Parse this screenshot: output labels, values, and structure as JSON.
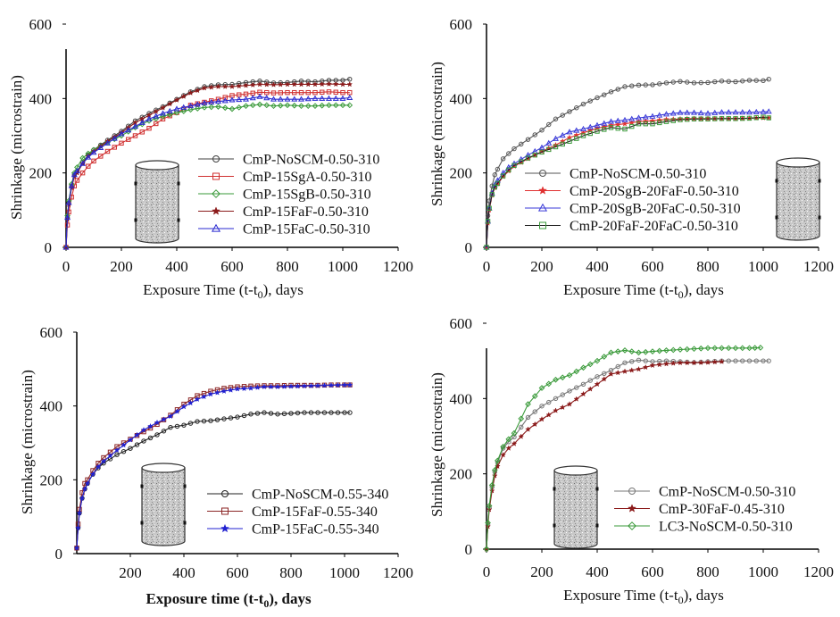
{
  "chart_data": [
    {
      "type": "line",
      "panel": "top-left",
      "title": "",
      "xlabel": "Exposure Time (t-t",
      "xlabel_sub": "0",
      "xlabel_suffix": "), days",
      "ylabel": "Shrinkage (microstrain)",
      "xlim": [
        0,
        1200
      ],
      "ylim": [
        0,
        600
      ],
      "xticks": [
        "0",
        "200",
        "400",
        "600",
        "800",
        "1000",
        "1200"
      ],
      "yticks": [
        "0",
        "200",
        "400",
        "600"
      ],
      "legend_placement": "bottom-right",
      "series": [
        {
          "name": "CmP-NoSCM-0.50-310",
          "color": "#404040",
          "marker": "circle",
          "x": [
            0,
            5,
            10,
            20,
            30,
            40,
            60,
            80,
            100,
            150,
            200,
            250,
            300,
            350,
            400,
            450,
            500,
            550,
            600,
            650,
            700,
            750,
            800,
            850,
            900,
            950,
            1000,
            1025
          ],
          "y": [
            0,
            80,
            120,
            165,
            195,
            205,
            228,
            248,
            262,
            288,
            312,
            340,
            360,
            378,
            398,
            418,
            432,
            437,
            438,
            443,
            447,
            442,
            443,
            447,
            445,
            449,
            449,
            452
          ]
        },
        {
          "name": "CmP-15SgA-0.50-310",
          "color": "#d03030",
          "marker": "square",
          "x": [
            0,
            5,
            10,
            20,
            30,
            40,
            60,
            80,
            100,
            150,
            200,
            250,
            300,
            350,
            400,
            450,
            500,
            550,
            600,
            650,
            700,
            750,
            800,
            850,
            900,
            950,
            1000,
            1025
          ],
          "y": [
            0,
            60,
            95,
            135,
            165,
            180,
            200,
            218,
            232,
            258,
            280,
            300,
            320,
            345,
            362,
            382,
            390,
            398,
            408,
            412,
            417,
            415,
            416,
            416,
            416,
            418,
            416,
            416
          ]
        },
        {
          "name": "CmP-15SgB-0.50-310",
          "color": "#3a9a3a",
          "marker": "diamond",
          "x": [
            0,
            5,
            10,
            20,
            30,
            40,
            60,
            80,
            100,
            150,
            200,
            250,
            300,
            350,
            400,
            450,
            500,
            550,
            600,
            650,
            700,
            750,
            800,
            850,
            900,
            950,
            1000,
            1025
          ],
          "y": [
            0,
            85,
            125,
            170,
            200,
            215,
            240,
            252,
            262,
            282,
            300,
            322,
            340,
            352,
            362,
            370,
            376,
            378,
            372,
            380,
            384,
            380,
            382,
            380,
            380,
            382,
            382,
            382
          ]
        },
        {
          "name": "CmP-15FaF-0.50-310",
          "color": "#8b1a1a",
          "marker": "star",
          "x": [
            0,
            5,
            10,
            20,
            30,
            40,
            60,
            80,
            100,
            150,
            200,
            250,
            300,
            350,
            400,
            450,
            500,
            550,
            600,
            650,
            700,
            750,
            800,
            850,
            900,
            950,
            1000,
            1025
          ],
          "y": [
            0,
            75,
            115,
            160,
            190,
            200,
            225,
            245,
            258,
            285,
            308,
            335,
            355,
            375,
            396,
            415,
            428,
            432,
            432,
            435,
            438,
            437,
            438,
            438,
            438,
            439,
            438,
            438
          ]
        },
        {
          "name": "CmP-15FaC-0.50-310",
          "color": "#2a2ad0",
          "marker": "triangle",
          "x": [
            0,
            5,
            10,
            20,
            30,
            40,
            60,
            80,
            100,
            150,
            200,
            250,
            300,
            350,
            400,
            450,
            500,
            550,
            600,
            650,
            700,
            750,
            800,
            850,
            900,
            950,
            1000,
            1025
          ],
          "y": [
            0,
            80,
            120,
            165,
            195,
            205,
            225,
            242,
            255,
            280,
            305,
            325,
            345,
            360,
            372,
            380,
            388,
            392,
            396,
            398,
            405,
            398,
            398,
            398,
            400,
            400,
            400,
            402
          ]
        }
      ]
    },
    {
      "type": "line",
      "panel": "top-right",
      "title": "",
      "xlabel": "Exposure Time (t-t",
      "xlabel_sub": "0",
      "xlabel_suffix": "), days",
      "ylabel": "Shrinkage (microstrain)",
      "xlim": [
        0,
        1200
      ],
      "ylim": [
        0,
        600
      ],
      "xticks": [
        "0",
        "200",
        "400",
        "600",
        "800",
        "1000",
        "1200"
      ],
      "yticks": [
        "0",
        "200",
        "400",
        "600"
      ],
      "legend_placement": "bottom-center",
      "series": [
        {
          "name": "CmP-NoSCM-0.50-310",
          "color": "#555555",
          "marker": "circle",
          "x": [
            0,
            5,
            10,
            20,
            30,
            40,
            60,
            80,
            100,
            150,
            200,
            250,
            300,
            350,
            400,
            450,
            500,
            550,
            600,
            650,
            700,
            750,
            800,
            850,
            900,
            950,
            1000,
            1020
          ],
          "y": [
            0,
            85,
            125,
            165,
            195,
            210,
            238,
            252,
            265,
            290,
            315,
            345,
            365,
            385,
            402,
            418,
            432,
            436,
            437,
            442,
            446,
            442,
            443,
            447,
            445,
            449,
            448,
            452
          ]
        },
        {
          "name": "CmP-20SgB-20FaF-0.50-310",
          "color": "#e03030",
          "marker": "star",
          "x": [
            0,
            5,
            10,
            20,
            30,
            40,
            60,
            80,
            100,
            150,
            200,
            250,
            300,
            350,
            400,
            450,
            500,
            550,
            600,
            650,
            700,
            750,
            800,
            850,
            900,
            950,
            1000,
            1020
          ],
          "y": [
            0,
            65,
            100,
            140,
            160,
            170,
            190,
            205,
            218,
            238,
            258,
            275,
            295,
            308,
            320,
            328,
            332,
            338,
            340,
            344,
            345,
            346,
            346,
            346,
            346,
            347,
            348,
            348
          ]
        },
        {
          "name": "CmP-20SgB-20FaC-0.50-310",
          "color": "#3a3ad8",
          "marker": "triangle",
          "x": [
            0,
            5,
            10,
            20,
            30,
            40,
            60,
            80,
            100,
            150,
            200,
            250,
            300,
            350,
            400,
            450,
            500,
            550,
            600,
            650,
            700,
            750,
            800,
            850,
            900,
            950,
            1000,
            1020
          ],
          "y": [
            0,
            70,
            105,
            145,
            168,
            180,
            200,
            215,
            225,
            248,
            268,
            292,
            310,
            318,
            328,
            338,
            342,
            348,
            352,
            358,
            362,
            362,
            360,
            363,
            363,
            363,
            364,
            365
          ]
        },
        {
          "name": "CmP-20FaF-20FaC-0.50-310",
          "color": "#1f1f1f",
          "marker": "square",
          "marker_color": "#3a9a3a",
          "x": [
            0,
            5,
            10,
            20,
            30,
            40,
            60,
            80,
            100,
            150,
            200,
            250,
            300,
            350,
            400,
            450,
            500,
            550,
            600,
            650,
            700,
            750,
            800,
            850,
            900,
            950,
            1000,
            1020
          ],
          "y": [
            0,
            70,
            105,
            142,
            162,
            172,
            192,
            208,
            220,
            240,
            256,
            270,
            285,
            300,
            312,
            322,
            318,
            332,
            332,
            338,
            343,
            345,
            345,
            346,
            346,
            347,
            350,
            348
          ]
        }
      ]
    },
    {
      "type": "line",
      "panel": "bottom-left",
      "title": "",
      "xlabel": "Exposure time (t-t",
      "xlabel_sub": "0",
      "xlabel_suffix": "), days",
      "ylabel": "Shrinkage (microstrain)",
      "xlim": [
        0,
        1200
      ],
      "ylim": [
        0,
        600
      ],
      "xticks": [
        "200",
        "400",
        "600",
        "800",
        "1000",
        "1200"
      ],
      "yticks": [
        "0",
        "200",
        "400",
        "600"
      ],
      "legend_placement": "bottom-right",
      "series": [
        {
          "name": "CmP-NoSCM-0.55-340",
          "color": "#222222",
          "marker": "circle",
          "x": [
            0,
            5,
            10,
            20,
            30,
            40,
            60,
            80,
            100,
            150,
            200,
            250,
            300,
            350,
            400,
            450,
            500,
            550,
            600,
            650,
            700,
            750,
            800,
            850,
            900,
            950,
            1000,
            1020
          ],
          "y": [
            15,
            70,
            110,
            150,
            175,
            190,
            215,
            232,
            245,
            268,
            285,
            305,
            322,
            342,
            348,
            358,
            360,
            365,
            370,
            378,
            382,
            378,
            380,
            382,
            382,
            382,
            382,
            382
          ]
        },
        {
          "name": "CmP-15FaF-0.55-340",
          "color": "#8b2525",
          "marker": "square",
          "x": [
            0,
            5,
            10,
            20,
            30,
            40,
            60,
            80,
            100,
            150,
            200,
            250,
            300,
            350,
            400,
            450,
            500,
            550,
            600,
            650,
            700,
            750,
            800,
            850,
            900,
            950,
            1000,
            1020
          ],
          "y": [
            15,
            80,
            120,
            165,
            190,
            200,
            225,
            245,
            260,
            290,
            310,
            330,
            350,
            375,
            405,
            428,
            440,
            448,
            452,
            454,
            455,
            455,
            456,
            456,
            456,
            457,
            457,
            457
          ]
        },
        {
          "name": "CmP-15FaC-0.55-340",
          "color": "#2020d0",
          "marker": "star",
          "x": [
            0,
            5,
            10,
            20,
            30,
            40,
            60,
            80,
            100,
            150,
            200,
            250,
            300,
            350,
            400,
            450,
            500,
            550,
            600,
            650,
            700,
            750,
            800,
            850,
            900,
            950,
            1000,
            1020
          ],
          "y": [
            15,
            70,
            110,
            150,
            175,
            190,
            215,
            235,
            250,
            280,
            308,
            335,
            355,
            372,
            398,
            418,
            432,
            440,
            446,
            448,
            452,
            452,
            453,
            454,
            455,
            456,
            457,
            457
          ]
        }
      ]
    },
    {
      "type": "line",
      "panel": "bottom-right",
      "title": "",
      "xlabel": "Exposure Time (t-t",
      "xlabel_sub": "0",
      "xlabel_suffix": "), days",
      "ylabel": "Shrinkage (microstrain)",
      "xlim": [
        0,
        1200
      ],
      "ylim": [
        0,
        600
      ],
      "xticks": [
        "0",
        "200",
        "400",
        "600",
        "800",
        "1000",
        "1200"
      ],
      "yticks": [
        "0",
        "200",
        "400",
        "600"
      ],
      "legend_placement": "bottom-right",
      "series": [
        {
          "name": "CmP-NoSCM-0.50-310",
          "color": "#777777",
          "marker": "circle",
          "x": [
            0,
            5,
            10,
            20,
            30,
            40,
            60,
            80,
            100,
            150,
            200,
            250,
            300,
            350,
            400,
            450,
            500,
            550,
            600,
            650,
            700,
            750,
            800,
            850,
            900,
            950,
            1000,
            1020
          ],
          "y": [
            0,
            65,
            110,
            165,
            205,
            230,
            268,
            285,
            298,
            350,
            380,
            400,
            420,
            438,
            458,
            475,
            495,
            502,
            498,
            500,
            498,
            496,
            498,
            500,
            500,
            500,
            500,
            500
          ]
        },
        {
          "name": "CmP-30FaF-0.45-310",
          "color": "#8b1a1a",
          "marker": "star",
          "x": [
            0,
            5,
            10,
            20,
            30,
            40,
            60,
            80,
            100,
            150,
            200,
            250,
            300,
            350,
            400,
            450,
            500,
            550,
            600,
            650,
            700,
            750,
            800,
            850
          ],
          "y": [
            0,
            60,
            105,
            155,
            195,
            220,
            250,
            268,
            280,
            318,
            345,
            368,
            385,
            412,
            438,
            465,
            472,
            478,
            488,
            492,
            495,
            495,
            496,
            498
          ]
        },
        {
          "name": "LC3-NoSCM-0.50-310",
          "color": "#3a9a3a",
          "marker": "diamond",
          "x": [
            0,
            5,
            10,
            20,
            30,
            40,
            60,
            80,
            100,
            150,
            200,
            250,
            300,
            350,
            400,
            450,
            500,
            550,
            600,
            650,
            700,
            750,
            800,
            850,
            900,
            950,
            990
          ],
          "y": [
            0,
            70,
            115,
            170,
            210,
            235,
            272,
            292,
            308,
            385,
            428,
            450,
            462,
            482,
            500,
            522,
            528,
            522,
            525,
            528,
            530,
            532,
            534,
            534,
            534,
            534,
            535
          ]
        }
      ]
    }
  ]
}
